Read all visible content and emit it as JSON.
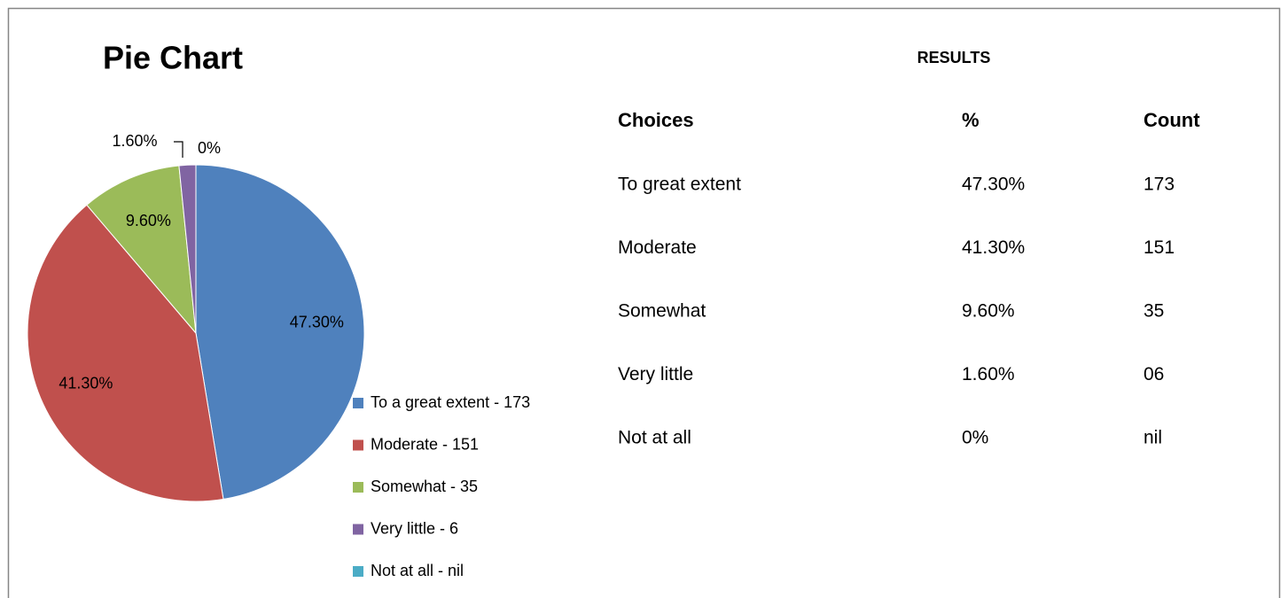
{
  "chart_data": {
    "type": "pie",
    "title": "Pie Chart",
    "categories": [
      "To a great extent - 173",
      "Moderate - 151",
      "Somewhat - 35",
      "Very little - 6",
      "Not at all - nil"
    ],
    "values": [
      47.3,
      41.3,
      9.6,
      1.6,
      0
    ],
    "value_labels": [
      "47.30%",
      "41.30%",
      "9.60%",
      "1.60%",
      "0%"
    ],
    "colors": [
      "#4f81bd",
      "#c0504d",
      "#9bbb59",
      "#8064a2",
      "#4bacc6"
    ],
    "legend": "right"
  },
  "table": {
    "title": "RESULTS",
    "header": [
      "Choices",
      "%",
      "Count"
    ],
    "rows": [
      [
        "To great extent",
        "47.30%",
        "173"
      ],
      [
        "Moderate",
        "41.30%",
        "151"
      ],
      [
        "Somewhat",
        "9.60%",
        "35"
      ],
      [
        "Very little",
        "1.60%",
        "06"
      ],
      [
        "Not at all",
        "0%",
        "nil"
      ]
    ]
  }
}
